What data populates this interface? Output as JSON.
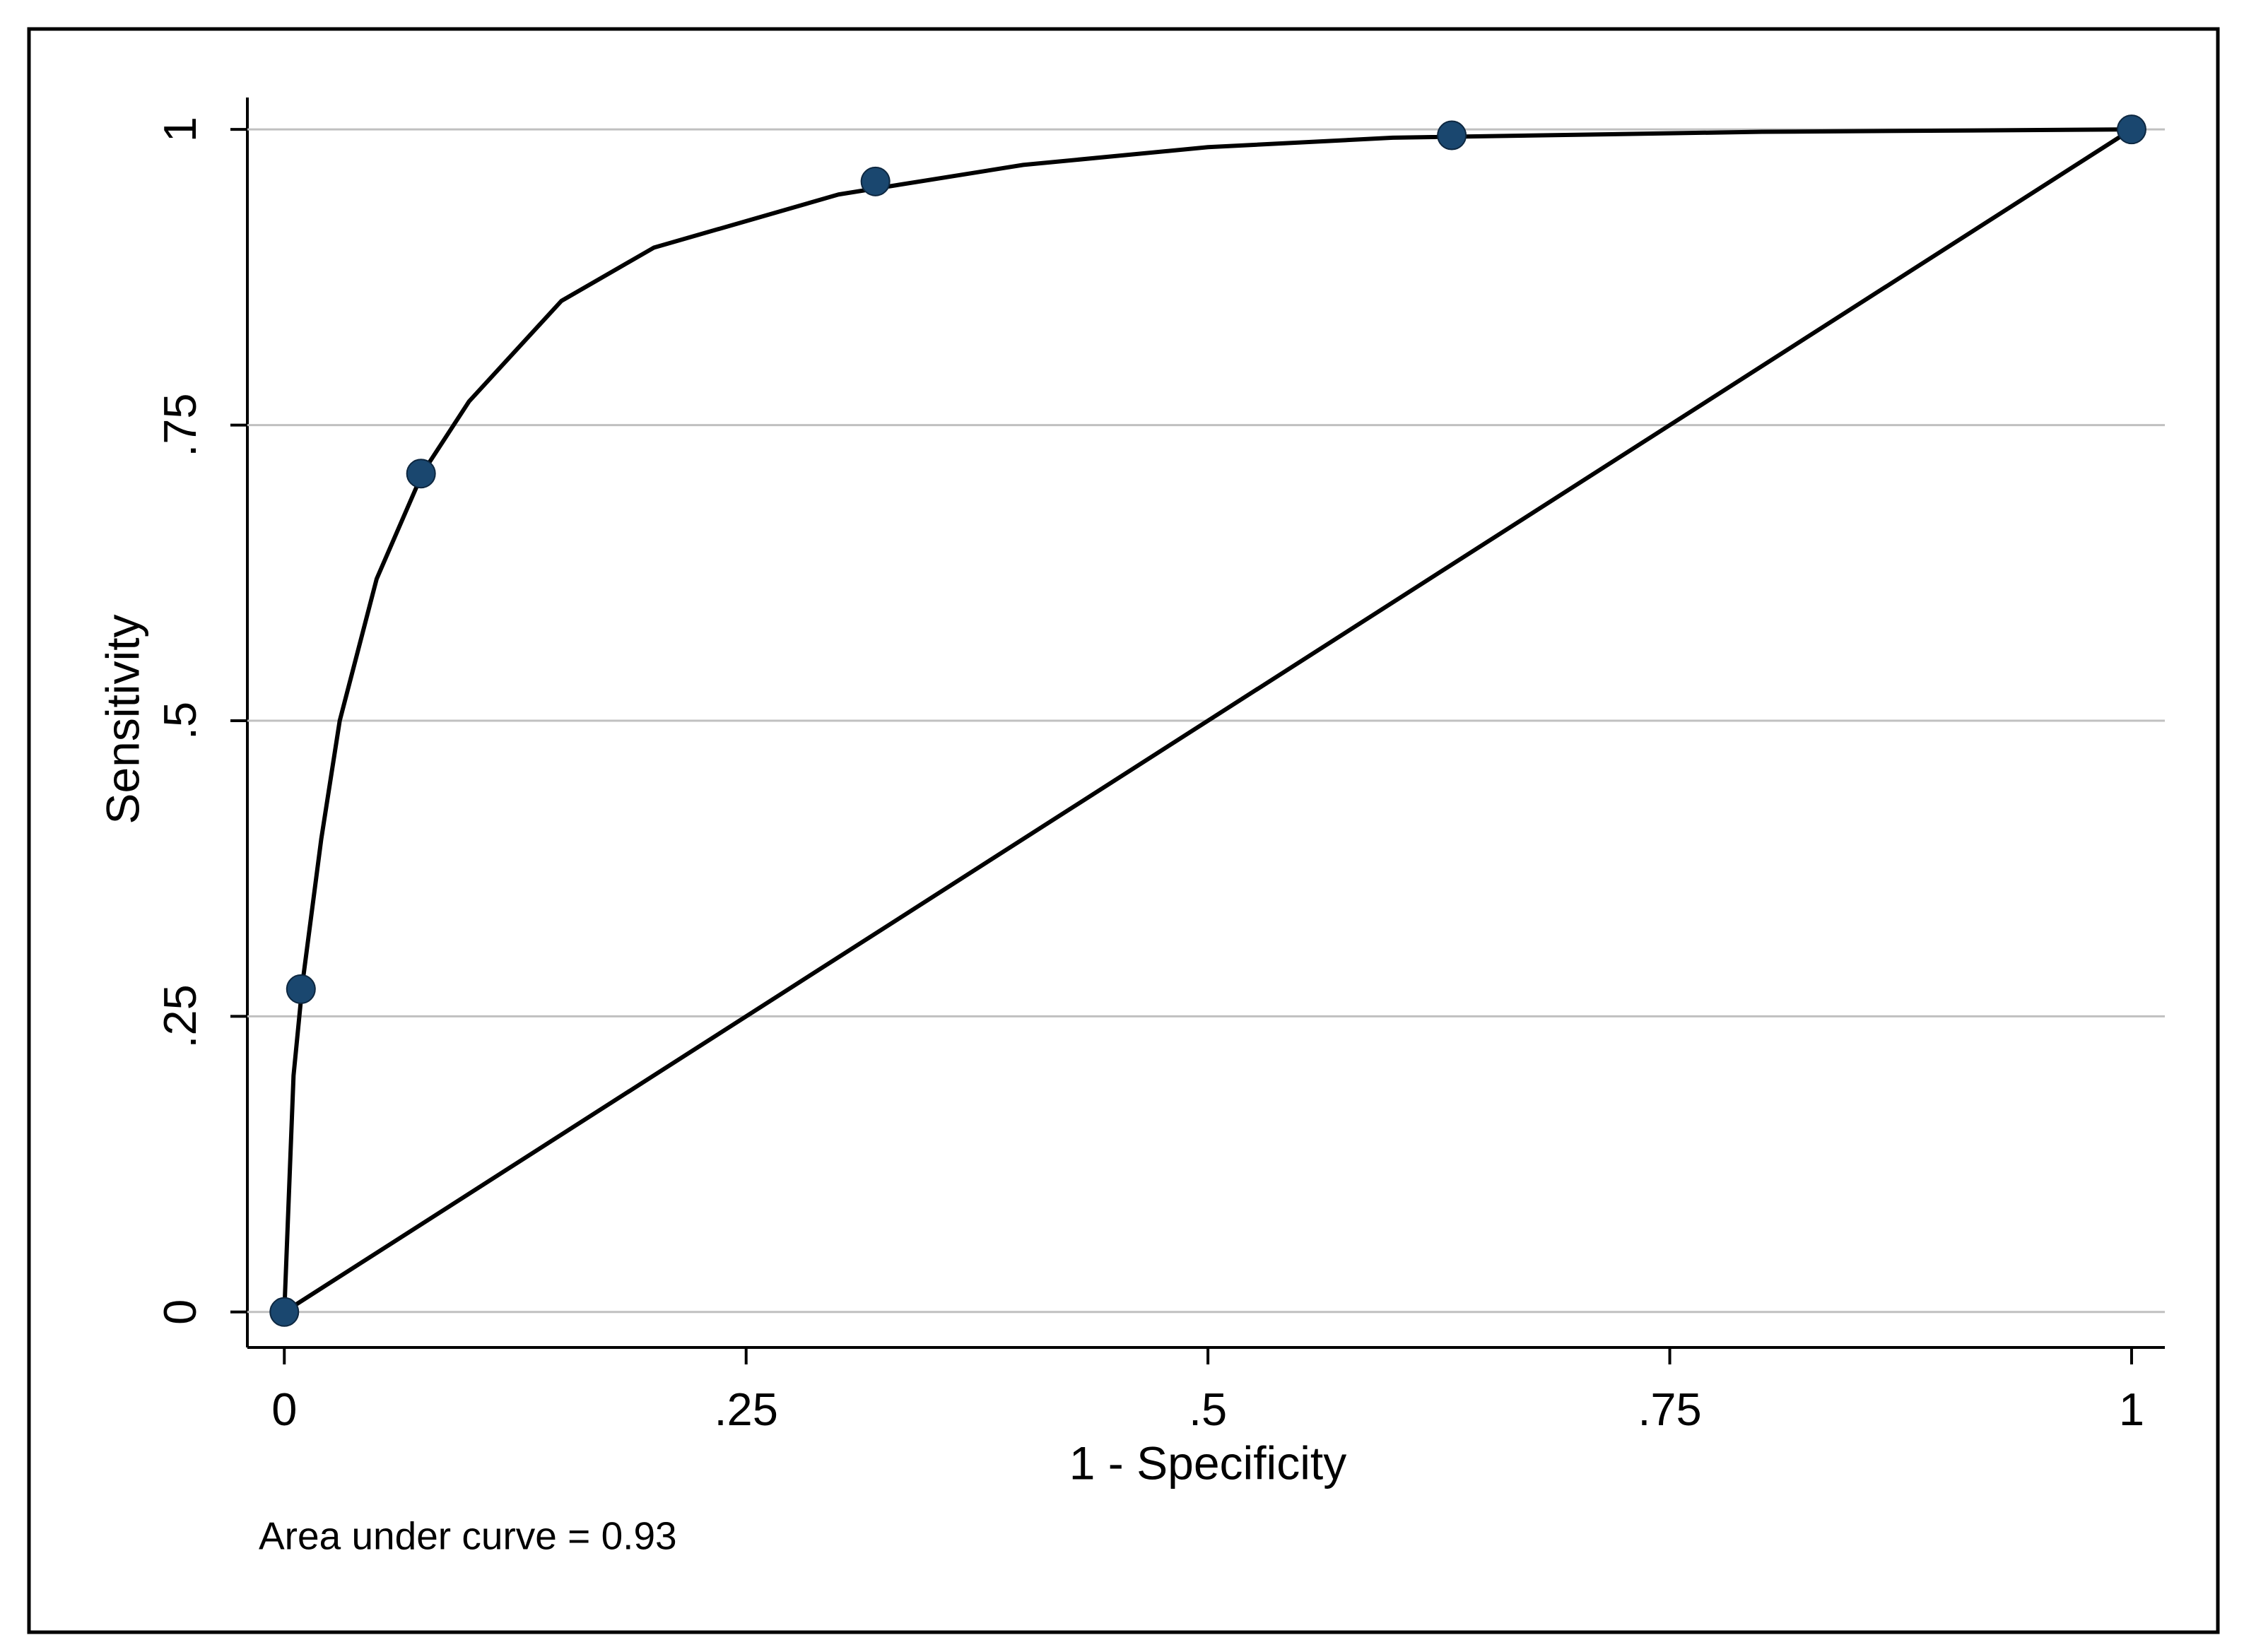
{
  "chart_data": {
    "type": "line",
    "x_label": "1 - Specificity",
    "y_label": "Sensitivity",
    "annotation": "Area under curve = 0.93",
    "xlim": [
      -0.02,
      1.018
    ],
    "ylim": [
      -0.03,
      1.027
    ],
    "xticks": [
      0,
      {
        "value": 0.25,
        "label": ".25"
      },
      {
        "value": 0.5,
        "label": ".5"
      },
      {
        "value": 0.75,
        "label": ".75"
      },
      1
    ],
    "yticks": [
      0,
      {
        "value": 0.25,
        "label": ".25"
      },
      {
        "value": 0.5,
        "label": ".5"
      },
      {
        "value": 0.75,
        "label": ".75"
      },
      1
    ],
    "grid": true,
    "series": [
      {
        "color": "#1a476f",
        "marker": true,
        "line": false,
        "x": [
          0,
          0.009,
          0.074,
          0.32,
          0.632,
          1
        ],
        "values": [
          0,
          0.273,
          0.709,
          0.956,
          0.995,
          1
        ]
      },
      {
        "color": "#000000",
        "marker": false,
        "line": true,
        "x": [
          0,
          0.005,
          0.01,
          0.02,
          0.03,
          0.05,
          0.075,
          0.1,
          0.15,
          0.2,
          0.3,
          0.4,
          0.5,
          0.6,
          0.8,
          1
        ],
        "values": [
          0,
          0.2,
          0.28,
          0.4,
          0.5,
          0.62,
          0.71,
          0.77,
          0.855,
          0.9,
          0.945,
          0.97,
          0.985,
          0.993,
          0.998,
          1
        ]
      },
      {
        "color": "#000000",
        "marker": false,
        "line": true,
        "x": [
          0,
          1
        ],
        "values": [
          0,
          1
        ]
      }
    ]
  }
}
